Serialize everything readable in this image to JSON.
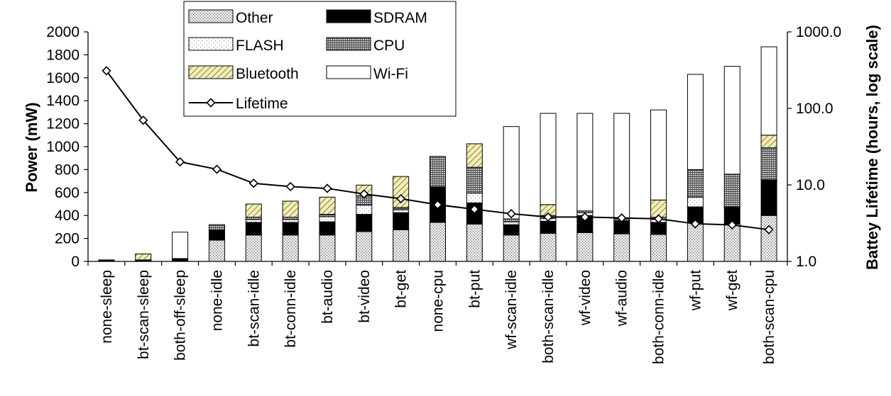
{
  "chart_data": {
    "type": "bar",
    "stacked": true,
    "categories": [
      "none-sleep",
      "bt-scan-sleep",
      "both-off-sleep",
      "none-idle",
      "bt-scan-idle",
      "bt-conn-idle",
      "bt-audio",
      "bt-video",
      "bt-get",
      "none-cpu",
      "bt-put",
      "wf-scan-idle",
      "both-scan-idle",
      "wf-video",
      "wf-audio",
      "both-conn-idle",
      "wf-put",
      "wf-get",
      "both-scan-cpu"
    ],
    "series": [
      {
        "name": "Other",
        "pattern": "dots",
        "values": [
          5,
          5,
          5,
          185,
          230,
          230,
          230,
          260,
          275,
          340,
          325,
          230,
          245,
          250,
          240,
          235,
          335,
          325,
          400
        ]
      },
      {
        "name": "SDRAM",
        "pattern": "solid",
        "values": [
          8,
          8,
          20,
          85,
          110,
          110,
          115,
          150,
          150,
          305,
          185,
          90,
          105,
          150,
          110,
          105,
          140,
          145,
          305
        ]
      },
      {
        "name": "FLASH",
        "pattern": "sparse",
        "values": [
          0,
          0,
          0,
          5,
          25,
          25,
          45,
          80,
          25,
          5,
          85,
          25,
          25,
          25,
          5,
          25,
          85,
          5,
          5
        ]
      },
      {
        "name": "CPU",
        "pattern": "grid",
        "values": [
          0,
          0,
          0,
          45,
          20,
          20,
          20,
          80,
          20,
          265,
          225,
          25,
          25,
          15,
          20,
          20,
          240,
          285,
          280
        ]
      },
      {
        "name": "Bluetooth",
        "pattern": "hatch",
        "values": [
          0,
          52,
          0,
          0,
          115,
          140,
          150,
          95,
          270,
          0,
          205,
          0,
          95,
          0,
          0,
          150,
          0,
          0,
          110
        ]
      },
      {
        "name": "Wi-Fi",
        "pattern": "none",
        "values": [
          0,
          0,
          230,
          0,
          0,
          0,
          0,
          0,
          0,
          0,
          0,
          805,
          795,
          850,
          915,
          785,
          830,
          940,
          770
        ]
      }
    ],
    "line": {
      "name": "Lifetime",
      "values": [
        310,
        70,
        20,
        16,
        10.5,
        9.5,
        9,
        7.6,
        6.6,
        5.5,
        4.8,
        4.2,
        3.8,
        3.8,
        3.7,
        3.6,
        3.1,
        3.0,
        2.6
      ]
    },
    "ylabel": "Power (mW)",
    "ylim": [
      0,
      2000
    ],
    "yticks": [
      "0",
      "200",
      "400",
      "600",
      "800",
      "1000",
      "1200",
      "1400",
      "1600",
      "1800",
      "2000"
    ],
    "y2label": "Battey Lifetime (hours, log scale)",
    "y2scale": "log",
    "y2lim": [
      1,
      1000
    ],
    "y2ticks": [
      "1.0",
      "10.0",
      "100.0",
      "1000.0"
    ],
    "legend": {
      "placement": "top-left",
      "items": [
        "Other",
        "SDRAM",
        "FLASH",
        "CPU",
        "Bluetooth",
        "Wi-Fi",
        "Lifetime"
      ]
    },
    "grid": false
  }
}
